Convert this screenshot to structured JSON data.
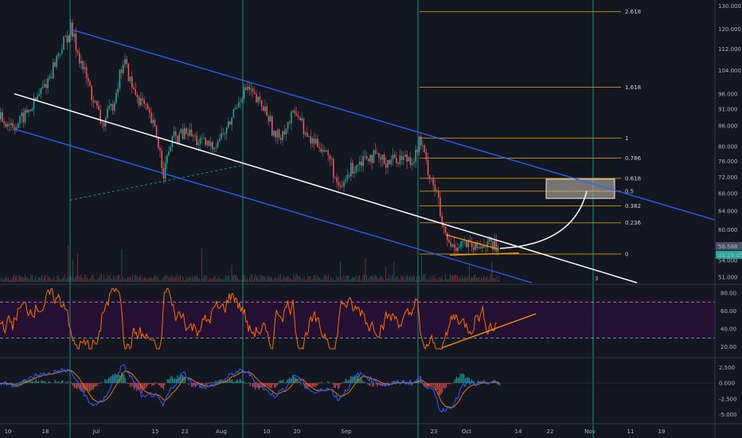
{
  "chart_data": [
    {
      "type": "candlestick",
      "panel": "price",
      "x_ticks": [
        "10",
        "18",
        "Jul",
        "15",
        "23",
        "Aug",
        "10",
        "20",
        "Sep",
        "23",
        "Oct",
        "14",
        "22",
        "Nov",
        "11",
        "19"
      ],
      "y_ticks": [
        51,
        54,
        57,
        60,
        64,
        68,
        72,
        76,
        80,
        86,
        91,
        96,
        104,
        112,
        120,
        130
      ],
      "y_tick_labels": [
        "51.000",
        "54.000",
        "57.000",
        "60.000",
        "64.000",
        "68.000",
        "72.000",
        "76.000",
        "80.000",
        "86.000",
        "91.000",
        "96.000",
        "104.000",
        "112.000",
        "120.000",
        "130.000"
      ],
      "log_scale": true,
      "price_path": [
        [
          0,
          88
        ],
        [
          20,
          86
        ],
        [
          40,
          92
        ],
        [
          60,
          101
        ],
        [
          75,
          112
        ],
        [
          88,
          120
        ],
        [
          100,
          108
        ],
        [
          115,
          95
        ],
        [
          128,
          86
        ],
        [
          140,
          92
        ],
        [
          155,
          108
        ],
        [
          165,
          98
        ],
        [
          180,
          92
        ],
        [
          195,
          84
        ],
        [
          205,
          73
        ],
        [
          215,
          82
        ],
        [
          235,
          84
        ],
        [
          250,
          81
        ],
        [
          265,
          80
        ],
        [
          285,
          85
        ],
        [
          300,
          95
        ],
        [
          310,
          98
        ],
        [
          320,
          94
        ],
        [
          335,
          90
        ],
        [
          345,
          82
        ],
        [
          360,
          86
        ],
        [
          372,
          91
        ],
        [
          385,
          82
        ],
        [
          400,
          81
        ],
        [
          415,
          76
        ],
        [
          425,
          68
        ],
        [
          440,
          74
        ],
        [
          460,
          78
        ],
        [
          480,
          76
        ],
        [
          500,
          77
        ],
        [
          520,
          77
        ],
        [
          527,
          82
        ],
        [
          535,
          75
        ],
        [
          548,
          68
        ],
        [
          555,
          60
        ],
        [
          565,
          56.5
        ],
        [
          580,
          57.5
        ],
        [
          595,
          56
        ],
        [
          610,
          57.5
        ],
        [
          625,
          56.2
        ]
      ],
      "last_price_label": "56.588",
      "countdown_label": "01:29:05",
      "fib_levels": [
        {
          "label": "2.618",
          "value": 127.5
        },
        {
          "label": "1.618",
          "value": 98.2
        },
        {
          "label": "1",
          "value": 82.4
        },
        {
          "label": "0.786",
          "value": 76.9
        },
        {
          "label": "0.618",
          "value": 71.7
        },
        {
          "label": "0.5",
          "value": 68.6
        },
        {
          "label": "0.382",
          "value": 65.2
        },
        {
          "label": "0.236",
          "value": 61.5
        },
        {
          "label": "0",
          "value": 55.2
        }
      ],
      "fib_left_x": 527,
      "fib_right_x": 780,
      "lines": [
        {
          "name": "channel-upper",
          "color": "#2962ff",
          "p1": {
            "x": 88,
            "y": 120
          },
          "p2": {
            "x": 900,
            "y": 62
          }
        },
        {
          "name": "channel-lower",
          "color": "#2962ff",
          "p1": {
            "x": 18,
            "y": 85
          },
          "p2": {
            "x": 668,
            "y": 50
          }
        },
        {
          "name": "channel-mid",
          "color": "#ffffff",
          "p1": {
            "x": 18,
            "y": 96
          },
          "p2": {
            "x": 800,
            "y": 50
          }
        },
        {
          "name": "triangle-top",
          "color": "#ff9800",
          "p1": {
            "x": 560,
            "y": 59
          },
          "p2": {
            "x": 625,
            "y": 56.2
          }
        },
        {
          "name": "triangle-bottom",
          "color": "#ff9800",
          "p1": {
            "x": 565,
            "y": 55
          },
          "p2": {
            "x": 652,
            "y": 55.4
          }
        },
        {
          "name": "dashed-support",
          "color": "#26a69a",
          "dashed": true,
          "p1": {
            "x": 88,
            "y": 66.5
          },
          "p2": {
            "x": 305,
            "y": 75
          }
        }
      ],
      "projection_arc": {
        "x0": 628,
        "y0": 56.3,
        "xc": 720,
        "yc": 57,
        "x1": 737,
        "y1": 68.6
      },
      "target_box": {
        "x0": 686,
        "x1": 772,
        "y0": 66.9,
        "y1": 71.5
      },
      "vertical_markers": [
        88,
        305,
        525,
        745
      ],
      "marker_label": "3"
    },
    {
      "type": "line",
      "panel": "rsi",
      "y_ticks": [
        20,
        40,
        60,
        80
      ],
      "y_tick_labels": [
        "20.00",
        "40.00",
        "60.00",
        "80.00"
      ],
      "band_upper": 70,
      "band_lower": 30,
      "trendline": {
        "p1": {
          "x": 555,
          "y": 19
        },
        "p2": {
          "x": 673,
          "y": 57
        }
      }
    },
    {
      "type": "histogram",
      "panel": "macd",
      "y_ticks": [
        2.5,
        0,
        -2.5,
        -5
      ],
      "y_tick_labels": [
        "2.500",
        "0.000",
        "-2.500",
        "-5.000"
      ]
    }
  ],
  "colors": {
    "background": "#131722",
    "up": "#26a69a",
    "down": "#ef5350",
    "rsi_line": "#ff6d00",
    "rsi_band": "#2a0f3a",
    "macd": "#2962ff",
    "signal": "#ff6d00",
    "fib": "#b8860b",
    "vertical_marker": "#1e8c7e"
  }
}
